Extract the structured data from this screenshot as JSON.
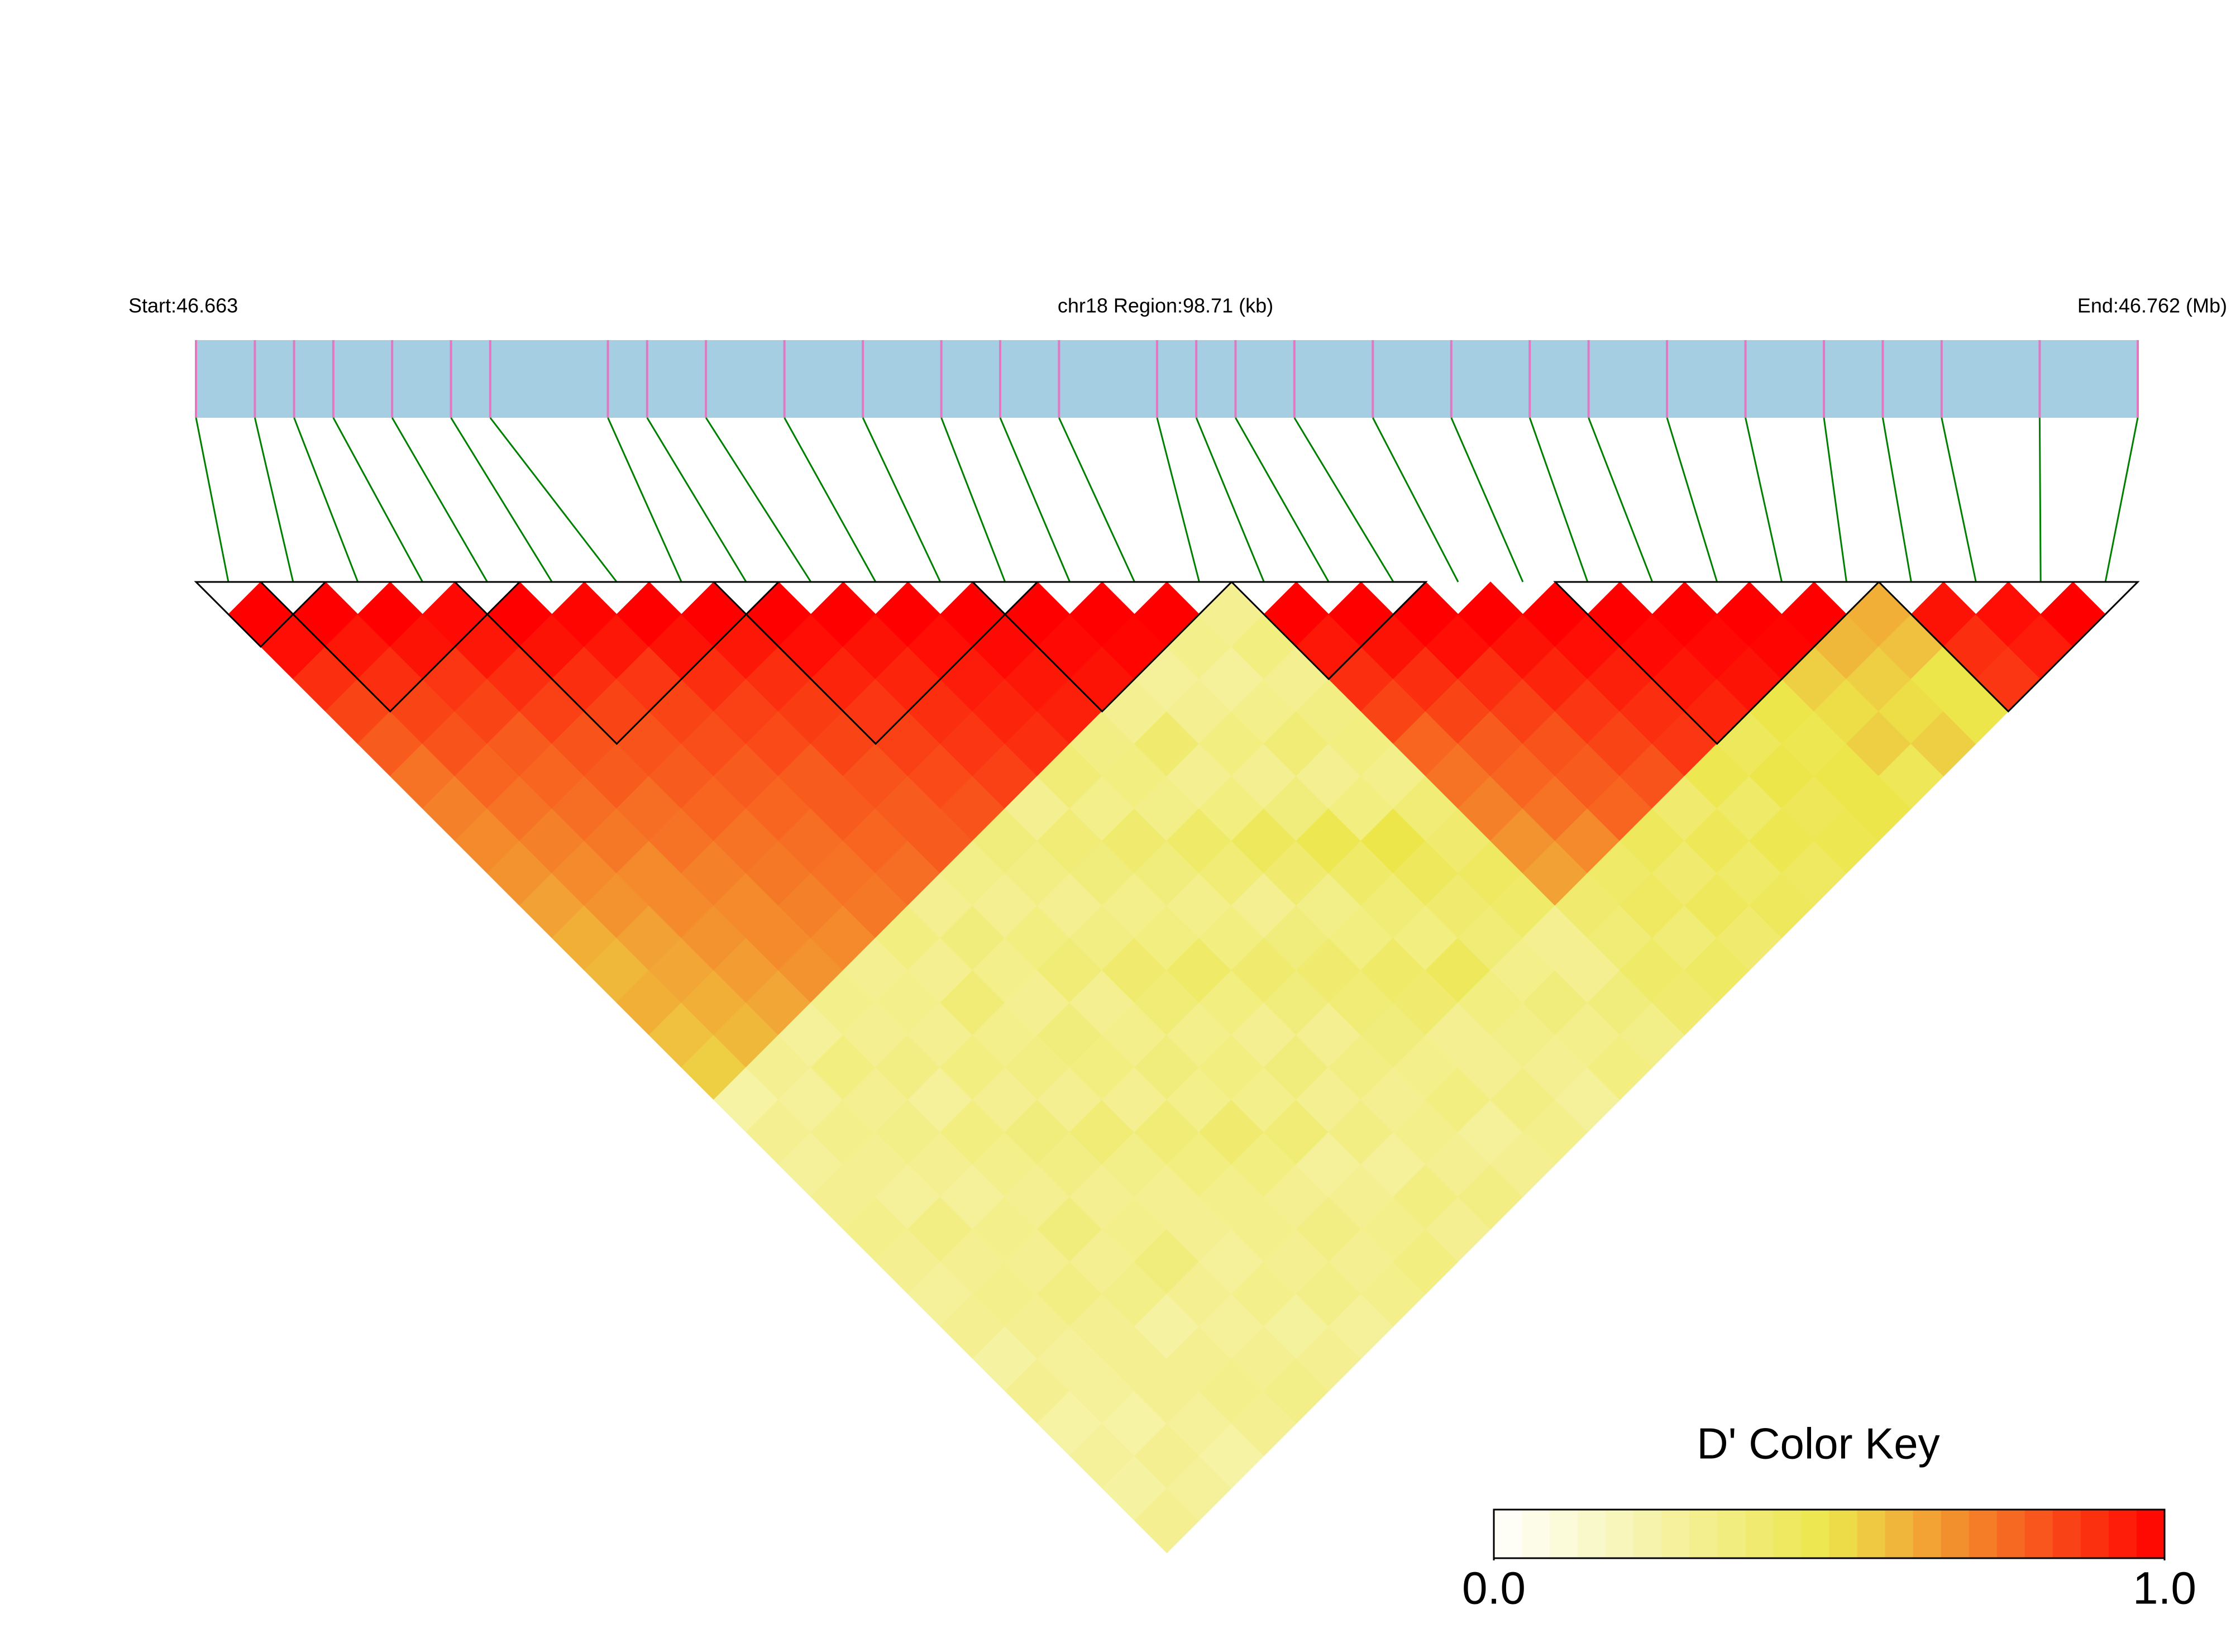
{
  "chart_data": {
    "type": "ld-heatmap",
    "start_label": "Start:46.663",
    "region_label": "chr18 Region:98.71 (kb)",
    "end_label": "End:46.762 (Mb)",
    "xlim": [
      46.663,
      46.762
    ],
    "x": [
      46.663,
      46.666,
      46.668,
      46.67,
      46.673,
      46.676,
      46.678,
      46.684,
      46.686,
      46.689,
      46.693,
      46.697,
      46.701,
      46.704,
      46.707,
      46.712,
      46.714,
      46.716,
      46.719,
      46.723,
      46.727,
      46.731,
      46.734,
      46.738,
      46.742,
      46.746,
      46.749,
      46.752,
      46.757,
      46.762
    ],
    "ld_rows": [
      [
        1.0
      ],
      [
        0.97,
        1.0
      ],
      [
        0.9,
        0.95,
        1.0
      ],
      [
        0.85,
        0.9,
        0.96,
        0.98
      ],
      [
        0.8,
        0.85,
        0.88,
        0.95,
        1.0
      ],
      [
        0.75,
        0.82,
        0.85,
        0.9,
        0.96,
        0.99
      ],
      [
        0.72,
        0.78,
        0.8,
        0.86,
        0.9,
        0.95,
        1.0
      ],
      [
        0.7,
        0.75,
        0.78,
        0.82,
        0.85,
        0.88,
        0.96,
        1.0
      ],
      [
        0.68,
        0.72,
        0.76,
        0.8,
        0.82,
        0.85,
        0.9,
        0.95,
        1.0
      ],
      [
        0.65,
        0.7,
        0.74,
        0.76,
        0.8,
        0.83,
        0.86,
        0.9,
        0.97,
        1.0
      ],
      [
        0.62,
        0.68,
        0.7,
        0.75,
        0.78,
        0.8,
        0.84,
        0.87,
        0.92,
        0.96,
        1.0
      ],
      [
        0.6,
        0.65,
        0.7,
        0.72,
        0.75,
        0.78,
        0.8,
        0.85,
        0.88,
        0.92,
        0.97,
        1.0
      ],
      [
        0.62,
        0.64,
        0.68,
        0.7,
        0.74,
        0.76,
        0.8,
        0.82,
        0.86,
        0.9,
        0.94,
        0.98,
        1.0
      ],
      [
        0.58,
        0.62,
        0.66,
        0.7,
        0.72,
        0.75,
        0.78,
        0.8,
        0.84,
        0.88,
        0.92,
        0.95,
        0.98,
        1.0
      ],
      [
        0.55,
        0.6,
        0.64,
        0.68,
        0.7,
        0.74,
        0.76,
        0.8,
        0.82,
        0.86,
        0.9,
        0.93,
        0.96,
        0.99,
        1.0
      ],
      [
        0.25,
        0.3,
        0.28,
        0.32,
        0.3,
        0.35,
        0.3,
        0.33,
        0.36,
        0.3,
        0.38,
        0.34,
        0.3,
        0.28,
        0.32,
        0.3
      ],
      [
        0.3,
        0.28,
        0.35,
        0.3,
        0.32,
        0.3,
        0.36,
        0.3,
        0.34,
        0.38,
        0.32,
        0.35,
        0.4,
        0.3,
        0.28,
        0.35,
        1.0
      ],
      [
        0.28,
        0.32,
        0.3,
        0.34,
        0.3,
        0.38,
        0.32,
        0.35,
        0.3,
        0.36,
        0.4,
        0.33,
        0.3,
        0.35,
        0.32,
        0.3,
        0.95,
        1.0
      ],
      [
        0.3,
        0.3,
        0.33,
        0.28,
        0.35,
        0.32,
        0.3,
        0.38,
        0.34,
        0.32,
        0.36,
        0.42,
        0.35,
        0.3,
        0.38,
        0.34,
        0.9,
        0.96,
        1.0
      ],
      [
        0.32,
        0.28,
        0.3,
        0.35,
        0.3,
        0.34,
        0.36,
        0.3,
        0.4,
        0.35,
        0.32,
        0.38,
        0.45,
        0.36,
        0.3,
        0.35,
        0.85,
        0.9,
        0.97,
        1.0
      ],
      [
        0.3,
        0.34,
        0.28,
        0.32,
        0.36,
        0.3,
        0.35,
        0.32,
        0.38,
        0.42,
        0.35,
        0.3,
        0.4,
        0.48,
        0.35,
        0.32,
        0.78,
        0.85,
        0.9,
        0.96,
        1.0
      ],
      [
        0.28,
        0.3,
        0.32,
        0.3,
        0.34,
        0.38,
        0.3,
        0.36,
        0.32,
        0.35,
        0.4,
        0.36,
        0.33,
        0.42,
        0.5,
        0.38,
        0.75,
        0.8,
        0.86,
        0.92,
        0.97,
        1.0
      ],
      [
        0.3,
        0.32,
        0.3,
        0.36,
        0.3,
        0.33,
        0.38,
        0.32,
        0.35,
        0.3,
        0.36,
        0.4,
        0.35,
        0.38,
        0.45,
        0.4,
        0.72,
        0.78,
        0.82,
        0.88,
        0.93,
        0.98,
        1.0
      ],
      [
        0.26,
        0.3,
        0.34,
        0.3,
        0.32,
        0.3,
        0.35,
        0.4,
        0.32,
        0.36,
        0.3,
        0.38,
        0.42,
        0.35,
        0.4,
        0.44,
        0.68,
        0.75,
        0.8,
        0.85,
        0.9,
        0.95,
        0.98,
        1.0
      ],
      [
        0.3,
        0.28,
        0.3,
        0.33,
        0.36,
        0.3,
        0.32,
        0.35,
        0.38,
        0.3,
        0.34,
        0.36,
        0.4,
        0.45,
        0.38,
        0.42,
        0.65,
        0.7,
        0.78,
        0.82,
        0.88,
        0.92,
        0.96,
        0.99,
        1.0
      ],
      [
        0.25,
        0.28,
        0.3,
        0.26,
        0.3,
        0.28,
        0.32,
        0.3,
        0.28,
        0.34,
        0.3,
        0.32,
        0.3,
        0.35,
        0.32,
        0.3,
        0.4,
        0.42,
        0.45,
        0.4,
        0.48,
        0.45,
        0.5,
        0.55,
        0.6,
        0.62
      ],
      [
        0.28,
        0.25,
        0.3,
        0.3,
        0.28,
        0.32,
        0.3,
        0.34,
        0.3,
        0.28,
        0.32,
        0.35,
        0.3,
        0.33,
        0.36,
        0.3,
        0.38,
        0.44,
        0.4,
        0.46,
        0.42,
        0.5,
        0.48,
        0.52,
        0.55,
        0.58,
        0.96
      ],
      [
        0.26,
        0.3,
        0.28,
        0.32,
        0.3,
        0.27,
        0.33,
        0.3,
        0.32,
        0.35,
        0.3,
        0.28,
        0.34,
        0.3,
        0.32,
        0.36,
        0.42,
        0.38,
        0.45,
        0.42,
        0.48,
        0.46,
        0.5,
        0.55,
        0.52,
        0.5,
        0.9,
        0.97
      ],
      [
        0.3,
        0.28,
        0.25,
        0.3,
        0.33,
        0.3,
        0.28,
        0.32,
        0.35,
        0.3,
        0.34,
        0.3,
        0.32,
        0.28,
        0.35,
        0.33,
        0.4,
        0.43,
        0.4,
        0.45,
        0.44,
        0.48,
        0.5,
        0.46,
        0.55,
        0.5,
        0.88,
        0.94,
        1.0
      ]
    ],
    "blocks": [
      [
        0,
        1
      ],
      [
        1,
        4
      ],
      [
        4,
        8
      ],
      [
        8,
        12
      ],
      [
        12,
        15
      ],
      [
        16,
        18
      ],
      [
        21,
        25
      ],
      [
        26,
        29
      ]
    ],
    "bar_color": "#a6cee3",
    "snp_color": "#e377c2",
    "link_color": "#008000",
    "colors": [
      "#ffffff",
      "#ece64a",
      "#ff0000"
    ],
    "colorbar": {
      "title": "D' Color Key",
      "lim": [
        0,
        1
      ],
      "ticks": [
        {
          "value": 0,
          "label": "0.0"
        },
        {
          "value": 1,
          "label": "1.0"
        }
      ]
    }
  }
}
